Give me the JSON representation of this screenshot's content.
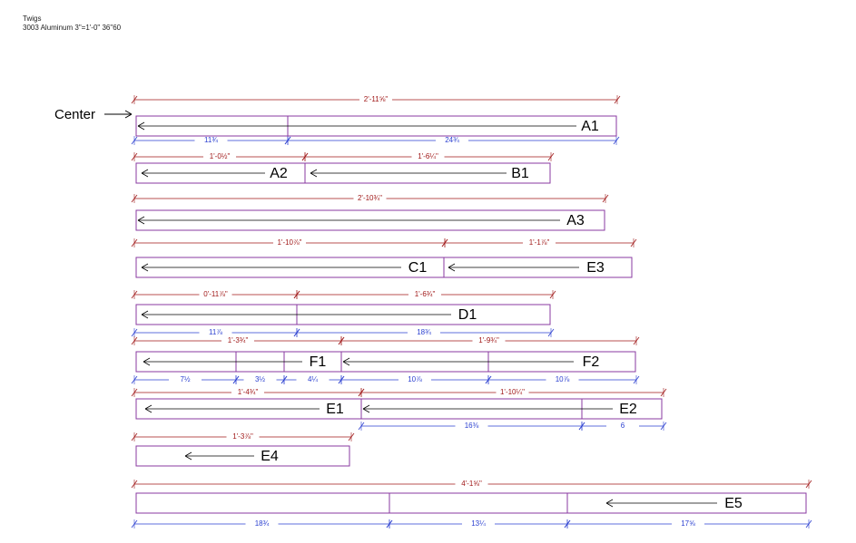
{
  "header": {
    "title": "Twigs",
    "subtitle": "3003 Aluminum 3\"=1'-0\" 36\"60"
  },
  "center_label": "Center",
  "parts": [
    "A1",
    "A2",
    "B1",
    "A3",
    "C1",
    "E3",
    "D1",
    "F1",
    "F2",
    "E1",
    "E2",
    "E4",
    "E5"
  ],
  "dimensions": [
    "2'-11⅝\"",
    "11¾",
    "24¾",
    "1'-0½\"",
    "1'-6¼\"",
    "2'-10¾\"",
    "1'-10⅞\"",
    "1'-1⅞\"",
    "0'-11⅞\"",
    "1'-6¾\"",
    "11⅞",
    "18¾",
    "1'-3¾\"",
    "1'-9¾\"",
    "7½",
    "3½",
    "4¼",
    "10⅞",
    "10⅞",
    "1'-4¾\"",
    "1'-10¼\"",
    "16⅜",
    "6",
    "1'-3⅞\"",
    "4'-1⅝\"",
    "18¾",
    "13¼",
    "17⅝"
  ]
}
